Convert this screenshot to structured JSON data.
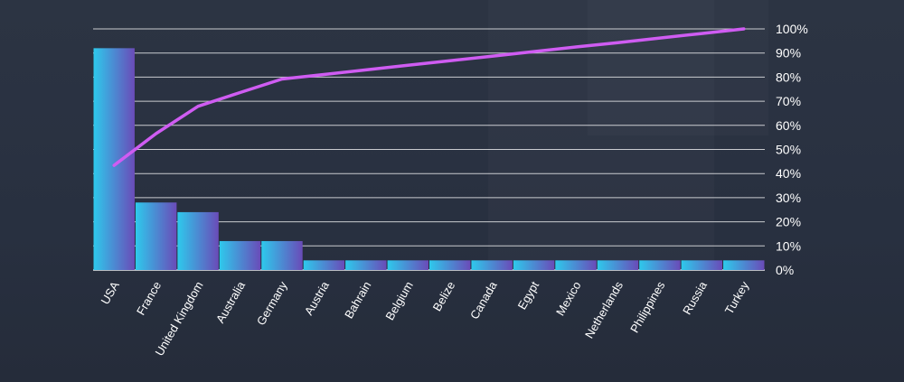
{
  "chart_data": {
    "type": "bar",
    "categories": [
      "USA",
      "France",
      "United Kingdom",
      "Australia",
      "Germany",
      "Austria",
      "Bahrain",
      "Belgium",
      "Belize",
      "Canada",
      "Egypt",
      "Mexico",
      "Netherlands",
      "Philippines",
      "Russia",
      "Turkey"
    ],
    "series": [
      {
        "type": "bar",
        "values": [
          23,
          7,
          6,
          3,
          3,
          1,
          1,
          1,
          1,
          1,
          1,
          1,
          1,
          1,
          1,
          1
        ]
      },
      {
        "type": "line",
        "axis": "right",
        "values": [
          43.4,
          56.6,
          67.9,
          73.6,
          79.2,
          81.1,
          83.0,
          84.9,
          86.8,
          88.7,
          90.6,
          92.5,
          94.3,
          96.2,
          98.1,
          100
        ]
      }
    ],
    "y_right_ticks": [
      "0%",
      "10%",
      "20%",
      "30%",
      "40%",
      "50%",
      "60%",
      "70%",
      "80%",
      "90%",
      "100%"
    ],
    "ylim_left": [
      0,
      25
    ],
    "ylim_right": [
      0,
      100
    ],
    "grid": true,
    "colors": {
      "bar_gradient_start": "#2ec9ec",
      "bar_gradient_end": "#6a4bb8",
      "line": "#cf5cf2",
      "grid": "#ffffff",
      "text": "#ffffff"
    }
  }
}
